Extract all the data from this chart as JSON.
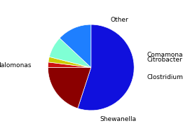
{
  "labels": [
    "Halomonas",
    "Other",
    "Comamonas",
    "Citrobacter",
    "Clostridium",
    "Shewanella"
  ],
  "sizes": [
    55,
    20,
    2,
    2,
    8,
    13
  ],
  "colors": [
    "#1010dd",
    "#8b0000",
    "#cc1111",
    "#cccc00",
    "#7fffd4",
    "#1e7fff"
  ],
  "startangle": 90,
  "label_fontsize": 6.5,
  "background_color": "#ffffff"
}
